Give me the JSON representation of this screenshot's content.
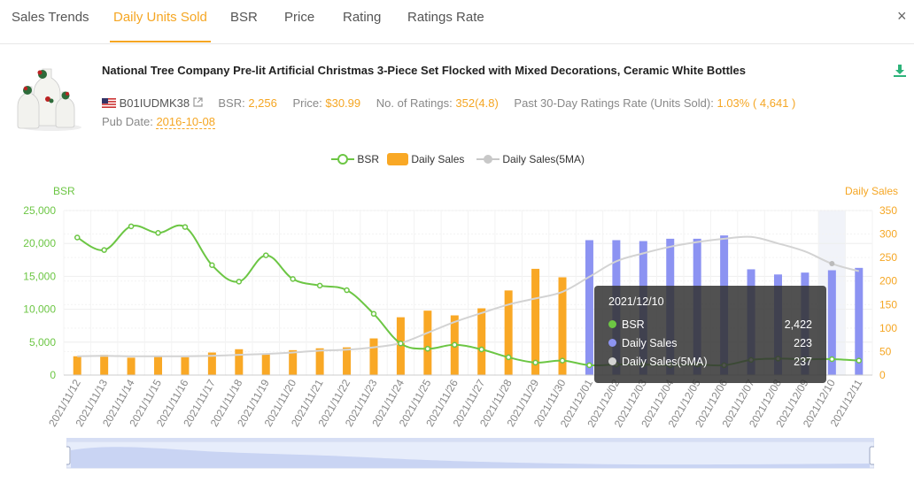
{
  "tabs": [
    {
      "label": "Sales Trends",
      "active": false
    },
    {
      "label": "Daily Units Sold",
      "active": true
    },
    {
      "label": "BSR",
      "active": false
    },
    {
      "label": "Price",
      "active": false
    },
    {
      "label": "Rating",
      "active": false
    },
    {
      "label": "Ratings Rate",
      "active": false
    }
  ],
  "close_label": "×",
  "product": {
    "title": "National Tree Company Pre-lit Artificial Christmas 3-Piece Set Flocked with Mixed Decorations, Ceramic White Bottles",
    "asin": "B01IUDMK38",
    "bsr_label": "BSR:",
    "bsr_value": "2,256",
    "price_label": "Price:",
    "price_value": "$30.99",
    "ratings_label": "No. of Ratings:",
    "ratings_value": "352(4.8)",
    "rate_label": "Past 30-Day Ratings Rate (Units Sold):",
    "rate_value": "1.03% ( 4,641 )",
    "pub_label": "Pub Date:",
    "pub_value": "2016-10-08"
  },
  "legend": {
    "bsr": "BSR",
    "daily_sales": "Daily Sales",
    "daily_sales_5ma": "Daily Sales(5MA)"
  },
  "colors": {
    "accent": "#f5a623",
    "bsr": "#6cc644",
    "bar_orange": "#f9a825",
    "bar_blue": "#8c93f2",
    "ma_line": "#d3d3d3",
    "download": "#2db37a"
  },
  "tooltip": {
    "date": "2021/12/10",
    "rows": [
      {
        "label": "BSR",
        "value": "2,422",
        "color": "#6cc644"
      },
      {
        "label": "Daily Sales",
        "value": "223",
        "color": "#8c93f2"
      },
      {
        "label": "Daily Sales(5MA)",
        "value": "237",
        "color": "#d3d3d3"
      }
    ]
  },
  "chart_data": {
    "type": "bar",
    "ylabel_left": "BSR",
    "ylabel_right": "Daily Sales",
    "yleft_ticks": [
      "0",
      "5,000",
      "10,000",
      "15,000",
      "20,000",
      "25,000"
    ],
    "yright_ticks": [
      "0",
      "50",
      "100",
      "150",
      "200",
      "250",
      "300",
      "350"
    ],
    "ylim_left": [
      0,
      25000
    ],
    "ylim_right": [
      0,
      350
    ],
    "grid": true,
    "legend_position": "top-center",
    "highlight_category": "2021/12/10",
    "categories": [
      "2021/11/12",
      "2021/11/13",
      "2021/11/14",
      "2021/11/15",
      "2021/11/16",
      "2021/11/17",
      "2021/11/18",
      "2021/11/19",
      "2021/11/20",
      "2021/11/21",
      "2021/11/22",
      "2021/11/23",
      "2021/11/24",
      "2021/11/25",
      "2021/11/26",
      "2021/11/27",
      "2021/11/28",
      "2021/11/29",
      "2021/11/30",
      "2021/12/01",
      "2021/12/02",
      "2021/12/03",
      "2021/12/04",
      "2021/12/05",
      "2021/12/06",
      "2021/12/07",
      "2021/12/08",
      "2021/12/09",
      "2021/12/10",
      "2021/12/11"
    ],
    "series": [
      {
        "name": "BSR",
        "axis": "left",
        "type": "line",
        "values": [
          20900,
          19000,
          22600,
          21600,
          22500,
          16700,
          14200,
          18200,
          14600,
          13600,
          12900,
          9300,
          4800,
          4000,
          4600,
          3900,
          2700,
          1900,
          2200,
          1500,
          1600,
          1600,
          1500,
          1600,
          1500,
          2300,
          2500,
          2400,
          2422,
          2200
        ]
      },
      {
        "name": "Daily Sales",
        "axis": "right",
        "type": "bar",
        "values": [
          40,
          43,
          37,
          39,
          38,
          48,
          55,
          45,
          53,
          57,
          59,
          78,
          123,
          137,
          127,
          142,
          180,
          226,
          208,
          287,
          287,
          285,
          290,
          290,
          297,
          225,
          214,
          218,
          223,
          228
        ],
        "projected_from": "2021/12/01"
      },
      {
        "name": "Daily Sales(5MA)",
        "axis": "right",
        "type": "line",
        "values": [
          40,
          41,
          40,
          40,
          40,
          41,
          43,
          45,
          48,
          52,
          54,
          59,
          68,
          90,
          113,
          132,
          150,
          163,
          177,
          209,
          242,
          259,
          273,
          283,
          290,
          294,
          280,
          263,
          237,
          221
        ]
      }
    ]
  }
}
